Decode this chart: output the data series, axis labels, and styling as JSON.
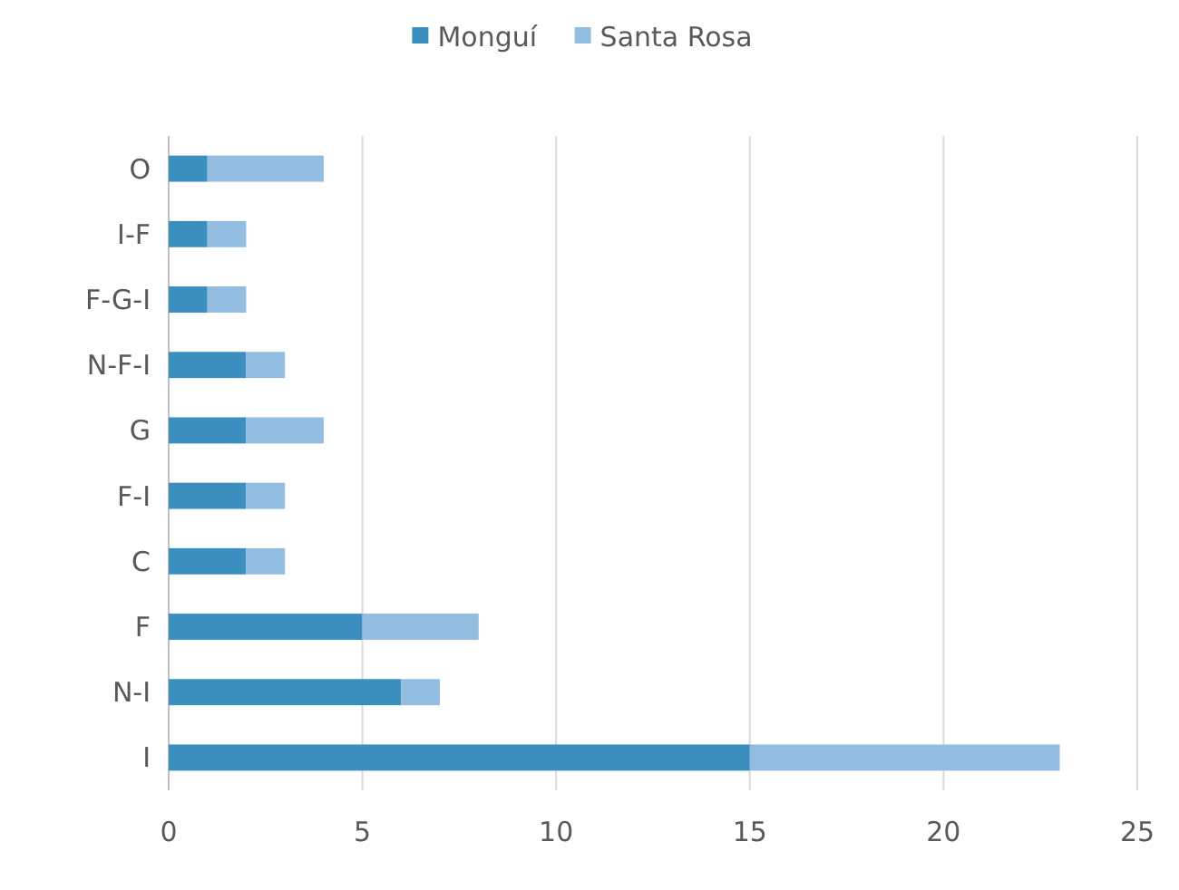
{
  "chart_data": {
    "type": "bar",
    "orientation": "horizontal",
    "stacked": true,
    "categories": [
      "O",
      "I-F",
      "F-G-I",
      "N-F-I",
      "G",
      "F-I",
      "C",
      "F",
      "N-I",
      "I"
    ],
    "series": [
      {
        "name": "Monguí",
        "color": "#3a8fbf",
        "values": [
          1,
          1,
          1,
          2,
          2,
          2,
          2,
          5,
          6,
          15
        ]
      },
      {
        "name": "Santa Rosa",
        "color": "#93bde0",
        "values": [
          3,
          1,
          1,
          1,
          2,
          1,
          1,
          3,
          1,
          8
        ]
      }
    ],
    "xlim": [
      0,
      25
    ],
    "xticks": [
      0,
      5,
      10,
      15,
      20,
      25
    ],
    "grid": "x",
    "legend": "top"
  }
}
